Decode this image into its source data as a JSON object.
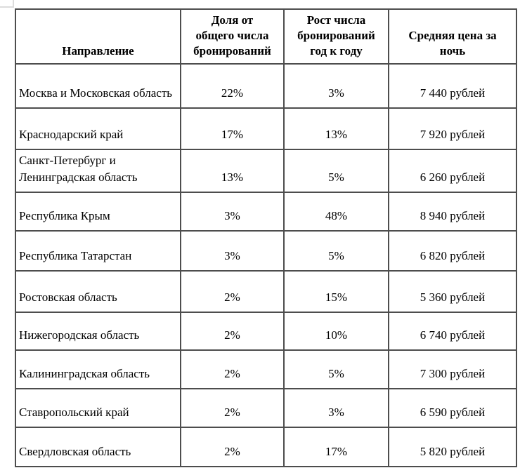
{
  "chart_data": {
    "type": "table",
    "title": "",
    "columns": [
      "Направление",
      "Доля от\nобщего числа\nбронирований",
      "Рост числа\nбронирований\nгод к году",
      "Средняя цена за\nночь"
    ],
    "rows": [
      {
        "destination": "Москва и Московская область",
        "share_of_bookings": "22%",
        "yoy_growth": "3%",
        "avg_price_per_night": "7 440 рублей"
      },
      {
        "destination": "Краснодарский край",
        "share_of_bookings": "17%",
        "yoy_growth": "13%",
        "avg_price_per_night": "7 920 рублей"
      },
      {
        "destination": "Санкт-Петербург и Ленинградская область",
        "share_of_bookings": "13%",
        "yoy_growth": "5%",
        "avg_price_per_night": "6 260 рублей"
      },
      {
        "destination": "Республика Крым",
        "share_of_bookings": "3%",
        "yoy_growth": "48%",
        "avg_price_per_night": "8 940 рублей"
      },
      {
        "destination": "Республика Татарстан",
        "share_of_bookings": "3%",
        "yoy_growth": "5%",
        "avg_price_per_night": "6 820 рублей"
      },
      {
        "destination": "Ростовская область",
        "share_of_bookings": "2%",
        "yoy_growth": "15%",
        "avg_price_per_night": "5 360 рублей"
      },
      {
        "destination": "Нижегородская область",
        "share_of_bookings": "2%",
        "yoy_growth": "10%",
        "avg_price_per_night": "6 740 рублей"
      },
      {
        "destination": "Калининградская область",
        "share_of_bookings": "2%",
        "yoy_growth": "5%",
        "avg_price_per_night": "7 300 рублей"
      },
      {
        "destination": "Ставропольский край",
        "share_of_bookings": "2%",
        "yoy_growth": "3%",
        "avg_price_per_night": "6 590 рублей"
      },
      {
        "destination": "Свердловская область",
        "share_of_bookings": "2%",
        "yoy_growth": "17%",
        "avg_price_per_night": "5 820 рублей"
      }
    ],
    "layout": {
      "grid": "all-borders",
      "header_style": "bold-centered",
      "first_column_align": "left",
      "value_columns_align": "center"
    }
  },
  "colors": {
    "background": "#ffffff",
    "border": "#4d4d4d",
    "text": "#000000",
    "artifact_line": "#dcdcdc"
  }
}
